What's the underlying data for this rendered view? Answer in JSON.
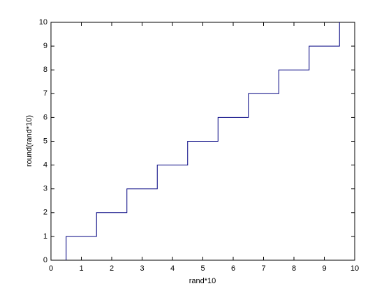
{
  "chart_data": {
    "type": "line",
    "xlabel": "rand*10",
    "ylabel": "round(rand*10)",
    "x": [
      0.5,
      0.5,
      1.5,
      1.5,
      2.5,
      2.5,
      3.5,
      3.5,
      4.5,
      4.5,
      5.5,
      5.5,
      6.5,
      6.5,
      7.5,
      7.5,
      8.5,
      8.5,
      9.5,
      9.5
    ],
    "y": [
      0,
      1,
      1,
      2,
      2,
      3,
      3,
      4,
      4,
      5,
      5,
      6,
      6,
      7,
      7,
      8,
      8,
      9,
      9,
      10
    ],
    "color": "#000080",
    "xlim": [
      0,
      10
    ],
    "ylim": [
      0,
      10
    ],
    "xticks": [
      0,
      1,
      2,
      3,
      4,
      5,
      6,
      7,
      8,
      9,
      10
    ],
    "yticks": [
      0,
      1,
      2,
      3,
      4,
      5,
      6,
      7,
      8,
      9,
      10
    ],
    "grid": false
  }
}
